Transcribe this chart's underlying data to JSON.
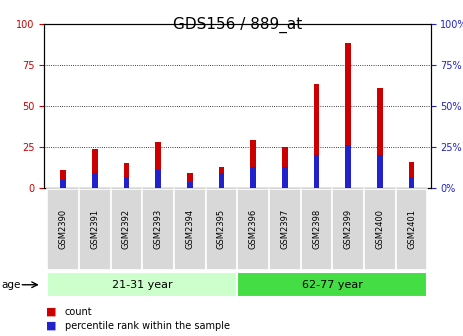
{
  "title": "GDS156 / 889_at",
  "samples": [
    "GSM2390",
    "GSM2391",
    "GSM2392",
    "GSM2393",
    "GSM2394",
    "GSM2395",
    "GSM2396",
    "GSM2397",
    "GSM2398",
    "GSM2399",
    "GSM2400",
    "GSM2401"
  ],
  "count_values": [
    11,
    24,
    15,
    28,
    9,
    13,
    29,
    25,
    63,
    88,
    61,
    16
  ],
  "percentile_values": [
    5,
    9,
    7,
    11,
    4,
    9,
    13,
    13,
    20,
    26,
    20,
    7
  ],
  "ylim": [
    0,
    100
  ],
  "yticks": [
    0,
    25,
    50,
    75,
    100
  ],
  "bar_width": 0.18,
  "count_color": "#cc0000",
  "percentile_color": "#2222cc",
  "age_groups": [
    {
      "label": "21-31 year",
      "start": 0,
      "end": 6,
      "color": "#ccffcc"
    },
    {
      "label": "62-77 year",
      "start": 6,
      "end": 12,
      "color": "#44dd44"
    }
  ],
  "age_label": "age",
  "legend_count": "count",
  "legend_percentile": "percentile rank within the sample",
  "title_fontsize": 11,
  "tick_fontsize": 7,
  "label_fontsize": 8,
  "right_ytick_labels": [
    "0%",
    "25%",
    "50%",
    "75%",
    "100%"
  ]
}
